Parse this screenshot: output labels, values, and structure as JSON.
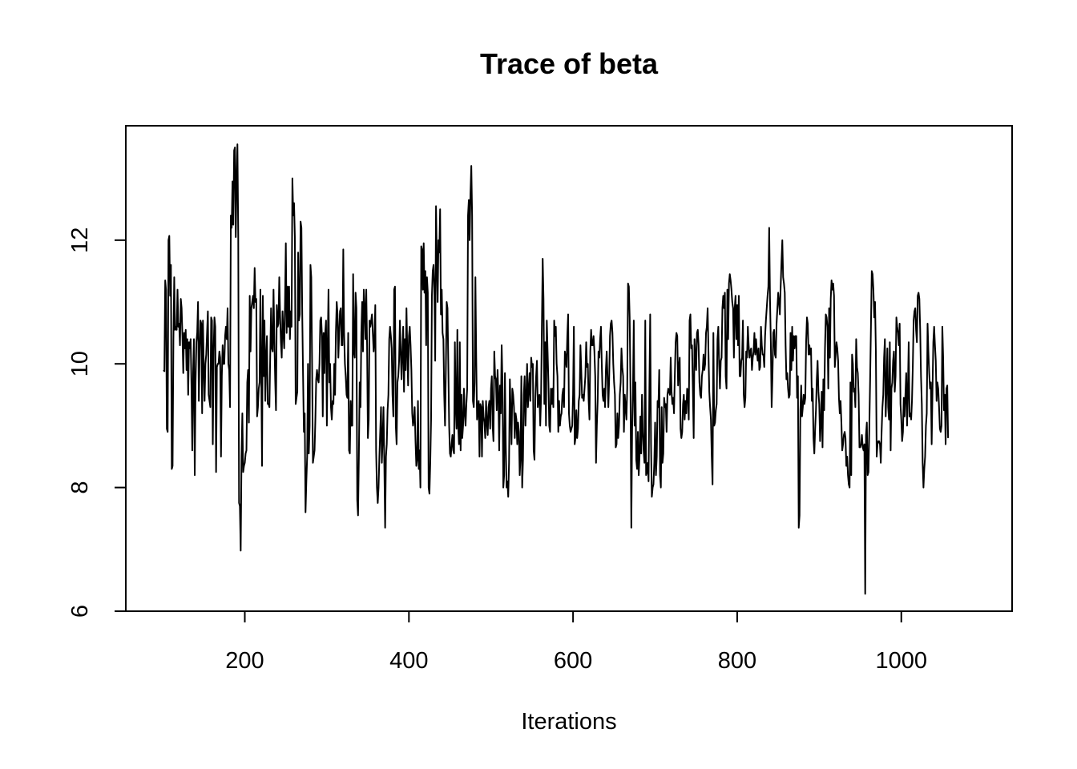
{
  "chart_data": {
    "type": "line",
    "title": "Trace of beta",
    "xlabel": "Iterations",
    "ylabel": "",
    "xlim": [
      55,
      1135
    ],
    "ylim": [
      6,
      13.85
    ],
    "x_ticks": [
      200,
      400,
      600,
      800,
      1000
    ],
    "y_ticks": [
      6,
      8,
      10,
      12
    ],
    "grid": false,
    "legend": "none",
    "line_color": "#000000",
    "series": [
      {
        "x_start": 101,
        "x_step": 1,
        "values": [
          9.9,
          9.88,
          11.35,
          11.2,
          8.95,
          8.9,
          12.0,
          12.07,
          11.1,
          11.6,
          8.3,
          8.35,
          10.4,
          11.4,
          10.55,
          10.6,
          10.55,
          11.2,
          10.6,
          10.65,
          10.3,
          11.05,
          10.9,
          10.45,
          9.85,
          10.5,
          10.25,
          10.55,
          9.9,
          10.4,
          9.5,
          10.35,
          10.25,
          10.4,
          9.65,
          8.6,
          9.85,
          10.4,
          8.2,
          9.7,
          10.35,
          10.5,
          11.0,
          9.4,
          10.2,
          10.7,
          10.65,
          9.2,
          10.7,
          9.95,
          9.4,
          10.0,
          10.15,
          10.5,
          10.85,
          9.5,
          9.4,
          9.3,
          10.75,
          10.7,
          8.7,
          10.2,
          10.75,
          10.6,
          8.25,
          9.95,
          10.0,
          10.0,
          10.2,
          10.1,
          8.5,
          9.8,
          10.3,
          10.0,
          10.0,
          10.45,
          10.6,
          10.4,
          10.9,
          10.0,
          9.9,
          9.3,
          12.4,
          12.2,
          12.95,
          12.25,
          13.45,
          13.5,
          12.05,
          13.0,
          13.55,
          12.1,
          7.75,
          7.7,
          6.98,
          8.5,
          9.2,
          8.25,
          8.35,
          8.4,
          8.55,
          8.6,
          9.7,
          9.9,
          9.05,
          11.1,
          10.2,
          10.9,
          11.0,
          11.1,
          10.9,
          11.55,
          11.0,
          11.05,
          9.15,
          9.3,
          9.6,
          9.7,
          11.2,
          9.95,
          8.35,
          11.1,
          9.8,
          10.7,
          9.4,
          10.1,
          10.45,
          9.35,
          9.35,
          9.3,
          10.15,
          10.9,
          10.25,
          10.2,
          11.2,
          10.4,
          9.75,
          9.25,
          10.95,
          10.6,
          10.65,
          11.4,
          10.8,
          10.35,
          10.1,
          10.85,
          10.5,
          10.25,
          11.0,
          11.95,
          10.5,
          11.25,
          10.6,
          11.25,
          10.4,
          10.85,
          10.6,
          13.0,
          12.4,
          12.6,
          12.05,
          9.35,
          9.45,
          9.55,
          11.8,
          10.7,
          10.8,
          12.3,
          12.2,
          10.8,
          9.8,
          8.9,
          9.2,
          7.6,
          8.1,
          8.5,
          10.0,
          8.55,
          9.0,
          11.6,
          11.4,
          10.0,
          8.4,
          8.5,
          8.6,
          9.1,
          9.75,
          9.9,
          9.75,
          9.7,
          10.0,
          10.7,
          10.75,
          10.45,
          9.15,
          10.5,
          9.85,
          10.5,
          10.7,
          9.0,
          10.3,
          11.2,
          9.7,
          10.0,
          9.3,
          9.1,
          9.4,
          9.35,
          10.0,
          9.5,
          10.5,
          11.0,
          10.8,
          10.1,
          10.5,
          10.85,
          10.9,
          10.3,
          10.3,
          11.85,
          10.5,
          10.0,
          9.8,
          9.5,
          9.45,
          10.5,
          8.6,
          8.55,
          9.4,
          9.0,
          9.0,
          11.45,
          10.2,
          10.1,
          11.15,
          10.9,
          7.8,
          7.55,
          8.5,
          9.7,
          9.3,
          10.5,
          11.0,
          10.2,
          11.2,
          10.9,
          10.4,
          11.2,
          10.3,
          8.8,
          9.1,
          10.7,
          10.6,
          10.7,
          10.8,
          10.5,
          10.2,
          10.4,
          10.95,
          8.6,
          8.0,
          7.75,
          8.0,
          8.5,
          8.9,
          9.3,
          8.4,
          8.8,
          9.3,
          8.4,
          7.35,
          8.5,
          8.7,
          9.25,
          9.5,
          10.4,
          10.6,
          10.45,
          10.25,
          9.5,
          9.15,
          11.2,
          11.25,
          9.0,
          8.7,
          9.7,
          9.8,
          10.05,
          10.7,
          10.2,
          9.75,
          10.2,
          10.6,
          9.55,
          10.4,
          9.9,
          10.9,
          10.2,
          9.65,
          10.45,
          10.6,
          10.3,
          9.9,
          9.2,
          9.0,
          9.1,
          9.3,
          8.75,
          8.35,
          8.45,
          9.4,
          8.3,
          8.6,
          8.0,
          11.9,
          11.85,
          11.2,
          11.95,
          11.15,
          11.5,
          10.3,
          11.4,
          11.15,
          8.0,
          7.9,
          8.4,
          9.1,
          11.1,
          11.5,
          11.6,
          11.2,
          10.05,
          12.55,
          11.7,
          11.0,
          12.0,
          11.8,
          12.5,
          10.8,
          11.2,
          10.5,
          10.4,
          9.5,
          9.0,
          9.9,
          11.0,
          10.9,
          10.0,
          9.0,
          8.55,
          8.5,
          8.7,
          8.85,
          8.6,
          8.55,
          10.35,
          9.3,
          8.95,
          10.55,
          9.0,
          8.7,
          10.35,
          8.6,
          9.5,
          8.8,
          9.0,
          9.6,
          9.2,
          9.0,
          9.35,
          9.6,
          12.4,
          12.65,
          12.0,
          12.75,
          13.2,
          12.4,
          9.4,
          9.3,
          9.7,
          11.4,
          10.1,
          9.1,
          9.25,
          9.4,
          8.5,
          9.35,
          9.3,
          8.5,
          9.4,
          9.15,
          9.05,
          8.8,
          9.4,
          9.05,
          8.85,
          9.3,
          9.4,
          8.95,
          9.6,
          9.8,
          9.0,
          8.75,
          10.2,
          9.8,
          9.75,
          9.25,
          9.9,
          9.5,
          8.6,
          9.65,
          9.2,
          10.3,
          9.7,
          8.0,
          8.2,
          9.85,
          8.7,
          8.0,
          8.1,
          7.85,
          8.4,
          9.75,
          9.25,
          8.7,
          9.6,
          9.5,
          9.3,
          8.8,
          9.2,
          9.1,
          8.7,
          9.05,
          8.9,
          8.2,
          8.5,
          9.8,
          8.0,
          8.45,
          9.5,
          9.8,
          9.0,
          9.45,
          10.0,
          9.3,
          9.55,
          9.85,
          9.4,
          10.1,
          9.95,
          10.0,
          8.6,
          8.45,
          9.45,
          9.8,
          10.05,
          9.3,
          9.45,
          9.5,
          9.0,
          9.45,
          10.6,
          11.7,
          11.05,
          9.35,
          10.35,
          9.0,
          10.7,
          10.2,
          9.7,
          9.0,
          8.9,
          9.6,
          9.35,
          9.6,
          9.3,
          10.7,
          10.45,
          10.6,
          10.0,
          9.8,
          8.9,
          9.4,
          9.0,
          9.15,
          9.2,
          9.5,
          9.6,
          9.3,
          10.2,
          10.1,
          9.95,
          10.45,
          10.8,
          9.2,
          9.0,
          8.9,
          8.95,
          9.0,
          9.5,
          10.6,
          8.7,
          8.8,
          9.25,
          8.8,
          8.95,
          9.4,
          9.5,
          10.3,
          9.9,
          9.45,
          9.5,
          9.4,
          9.6,
          9.8,
          10.35,
          9.95,
          10.0,
          9.4,
          9.1,
          10.2,
          10.55,
          10.3,
          10.3,
          10.45,
          10.2,
          9.8,
          8.4,
          9.0,
          9.4,
          10.2,
          10.1,
          10.4,
          10.6,
          10.0,
          9.5,
          9.4,
          9.6,
          9.3,
          9.9,
          10.2,
          9.8,
          9.3,
          9.75,
          10.45,
          10.65,
          10.7,
          10.5,
          10.0,
          9.7,
          9.5,
          8.65,
          8.7,
          9.2,
          8.8,
          9.0,
          9.5,
          9.7,
          10.25,
          9.95,
          9.8,
          8.9,
          9.5,
          9.3,
          9.1,
          9.6,
          11.3,
          11.25,
          10.75,
          9.55,
          7.35,
          8.95,
          9.55,
          10.7,
          9.0,
          9.7,
          8.45,
          8.3,
          8.9,
          8.2,
          8.5,
          9.15,
          8.55,
          9.5,
          8.9,
          8.6,
          8.4,
          10.7,
          8.2,
          8.25,
          8.4,
          8.1,
          9.6,
          10.8,
          8.7,
          7.85,
          8.0,
          8.05,
          8.4,
          9.05,
          8.2,
          8.5,
          9.4,
          9.3,
          9.9,
          8.2,
          8.0,
          9.3,
          8.4,
          8.55,
          9.45,
          9.3,
          9.35,
          8.9,
          9.5,
          9.6,
          9.55,
          9.5,
          10.1,
          9.55,
          9.35,
          9.45,
          9.2,
          9.8,
          10.35,
          10.5,
          10.45,
          9.65,
          9.95,
          10.1,
          8.95,
          8.8,
          8.9,
          9.35,
          9.5,
          9.1,
          9.4,
          9.2,
          9.6,
          9.55,
          9.1,
          10.7,
          10.8,
          10.25,
          10.3,
          9.6,
          8.8,
          10.4,
          10.1,
          9.9,
          10.5,
          10.55,
          10.3,
          9.7,
          9.5,
          9.45,
          9.8,
          9.9,
          10.15,
          9.9,
          10.0,
          10.5,
          10.6,
          10.9,
          10.2,
          9.55,
          9.3,
          9.1,
          8.5,
          8.05,
          10.5,
          9.0,
          9.05,
          9.25,
          9.35,
          10.4,
          10.6,
          10.0,
          9.6,
          10.05,
          10.1,
          10.9,
          11.1,
          10.9,
          11.15,
          9.8,
          9.6,
          11.2,
          10.4,
          11.3,
          11.45,
          11.35,
          11.2,
          11.0,
          10.9,
          10.1,
          10.9,
          11.1,
          10.4,
          10.95,
          10.3,
          11.1,
          9.8,
          9.8,
          10.05,
          10.1,
          10.7,
          9.5,
          9.3,
          9.45,
          10.2,
          10.1,
          10.6,
          10.3,
          10.1,
          10.2,
          10.25,
          9.9,
          10.1,
          10.2,
          10.5,
          10.15,
          10.4,
          10.2,
          10.05,
          10.25,
          9.9,
          9.95,
          10.6,
          10.3,
          10.15,
          10.15,
          9.95,
          10.45,
          10.7,
          10.9,
          11.1,
          11.25,
          12.2,
          11.05,
          10.35,
          9.3,
          9.8,
          10.5,
          10.55,
          10.15,
          10.1,
          10.65,
          10.9,
          11.15,
          11.0,
          10.8,
          11.25,
          11.65,
          12.0,
          11.4,
          11.3,
          11.15,
          10.3,
          9.75,
          9.85,
          9.6,
          9.45,
          9.5,
          10.5,
          9.9,
          10.6,
          10.05,
          10.45,
          10.25,
          10.45,
          10.45,
          9.45,
          9.8,
          7.35,
          7.55,
          9.25,
          9.65,
          9.15,
          9.3,
          9.5,
          9.35,
          9.45,
          10.35,
          10.75,
          10.65,
          10.15,
          10.3,
          10.15,
          10.25,
          9.4,
          9.6,
          8.8,
          8.55,
          8.95,
          9.25,
          9.75,
          10.05,
          9.55,
          9.35,
          8.75,
          9.05,
          9.55,
          8.65,
          9.75,
          9.25,
          10.25,
          10.8,
          10.75,
          10.6,
          9.6,
          10.9,
          10.1,
          11.05,
          11.35,
          11.2,
          11.3,
          11.1,
          9.95,
          10.15,
          10.35,
          10.25,
          10.05,
          9.45,
          9.2,
          9.4,
          9.05,
          8.6,
          8.7,
          8.85,
          8.9,
          8.8,
          8.35,
          8.5,
          8.2,
          8.05,
          8.0,
          9.7,
          8.2,
          10.15,
          10.0,
          9.55,
          9.6,
          9.3,
          10.4,
          9.95,
          9.85,
          9.5,
          8.65,
          8.65,
          8.7,
          8.85,
          8.65,
          8.6,
          8.7,
          6.28,
          8.85,
          9.05,
          8.2,
          8.25,
          8.95,
          9.75,
          10.6,
          11.5,
          11.45,
          11.2,
          10.75,
          11.0,
          10.2,
          8.5,
          8.7,
          8.75,
          8.75,
          8.7,
          8.4,
          8.9,
          9.3,
          9.5,
          10.1,
          10.4,
          9.15,
          9.6,
          10.25,
          9.3,
          9.1,
          10.35,
          8.6,
          9.6,
          9.7,
          10.05,
          10.2,
          9.55,
          9.8,
          10.75,
          10.6,
          10.5,
          10.3,
          10.65,
          9.35,
          9.1,
          8.75,
          8.9,
          9.45,
          9.15,
          9.5,
          9.85,
          9.0,
          9.55,
          10.35,
          9.15,
          9.2,
          9.1,
          9.4,
          9.95,
          10.7,
          10.85,
          10.9,
          10.55,
          10.35,
          11.1,
          11.15,
          11.05,
          10.55,
          9.8,
          9.35,
          8.4,
          8.0,
          8.3,
          8.5,
          9.0,
          9.2,
          10.65,
          10.2,
          9.85,
          9.6,
          9.7,
          8.7,
          9.55,
          10.35,
          10.6,
          10.3,
          10.05,
          9.4,
          9.7,
          9.6,
          9.3,
          8.95,
          8.9,
          9.0,
          10.6,
          10.1,
          9.25,
          9.5,
          8.7,
          9.6,
          9.65,
          8.8
        ]
      }
    ]
  }
}
